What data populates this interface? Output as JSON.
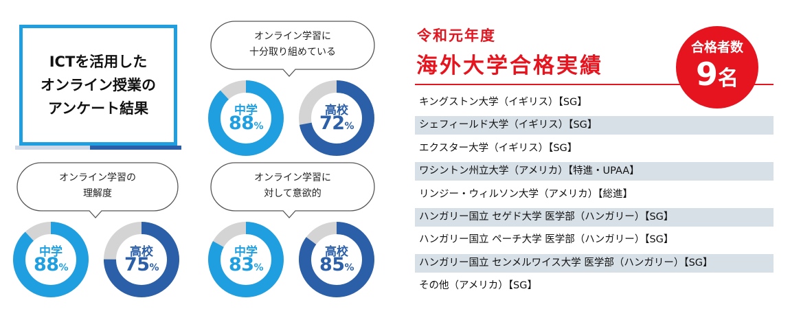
{
  "survey": {
    "title_lines": [
      "ICTを活用した",
      "オンライン授業の",
      "アンケート結果"
    ],
    "questions": [
      {
        "lines": [
          "オンライン学習に",
          "十分取り組めている"
        ],
        "results": [
          {
            "group": "中学",
            "value": 88,
            "unit": "%"
          },
          {
            "group": "高校",
            "value": 72,
            "unit": "%"
          }
        ]
      },
      {
        "lines": [
          "オンライン学習の",
          "理解度"
        ],
        "results": [
          {
            "group": "中学",
            "value": 88,
            "unit": "%"
          },
          {
            "group": "高校",
            "value": 75,
            "unit": "%"
          }
        ]
      },
      {
        "lines": [
          "オンライン学習に",
          "対して意欲的"
        ],
        "results": [
          {
            "group": "中学",
            "value": 83,
            "unit": "%"
          },
          {
            "group": "高校",
            "value": 85,
            "unit": "%"
          }
        ]
      }
    ],
    "colors": {
      "junior_high": "#1f9fe0",
      "high_school": "#2b5fa8",
      "remainder": "#d4d4d4"
    }
  },
  "results": {
    "heading_line1": "令和元年度",
    "heading_line2": "海外大学合格実績",
    "badge_label": "合格者数",
    "badge_count": "9",
    "badge_unit": "名",
    "accent_color": "#e5141e",
    "universities": [
      "キングストン大学（イギリス）【SG】",
      "シェフィールド大学（イギリス）【SG】",
      "エクスター大学（イギリス）【SG】",
      "ワシントン州立大学（アメリカ）【特進・UPAA】",
      "リンジー・ウィルソン大学（アメリカ）【総進】",
      "ハンガリー国立 セゲド大学 医学部（ハンガリー）【SG】",
      "ハンガリー国立 ペーチ大学 医学部（ハンガリー）【SG】",
      "ハンガリー国立 センメルワイス大学 医学部（ハンガリー）【SG】",
      "その他（アメリカ）【SG】"
    ]
  }
}
